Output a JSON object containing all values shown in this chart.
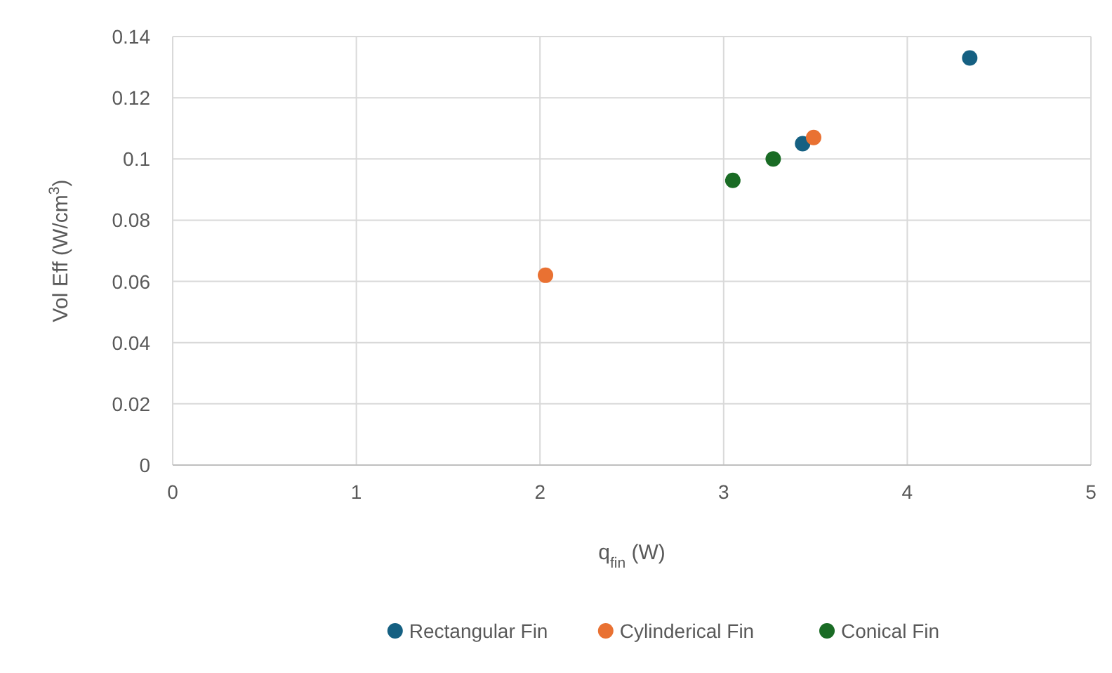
{
  "chart_data": {
    "type": "scatter",
    "xlabel": "q$_{fin}$ (W)",
    "ylabel": "Vol Eff (W/cm$^{3}$)",
    "xlim": [
      0,
      5
    ],
    "ylim": [
      0,
      0.14
    ],
    "xticks": [
      0,
      1,
      2,
      3,
      4,
      5
    ],
    "yticks": [
      0,
      0.02,
      0.04,
      0.06,
      0.08,
      {
        "value": 0.1,
        "label": "0.1"
      },
      0.12,
      0.14
    ],
    "grid": true,
    "legend": "bottom",
    "marker": "circle",
    "series": [
      {
        "name": "Rectangular Fin",
        "color": "#156082",
        "x": [
          4.34,
          3.43
        ],
        "values": [
          0.133,
          0.105
        ]
      },
      {
        "name": "Cylinderical Fin",
        "color": "#e97132",
        "x": [
          2.03,
          3.49
        ],
        "values": [
          0.062,
          0.107
        ]
      },
      {
        "name": "Conical Fin",
        "color": "#196b24",
        "x": [
          3.05,
          3.27
        ],
        "values": [
          0.093,
          0.1
        ]
      }
    ]
  }
}
